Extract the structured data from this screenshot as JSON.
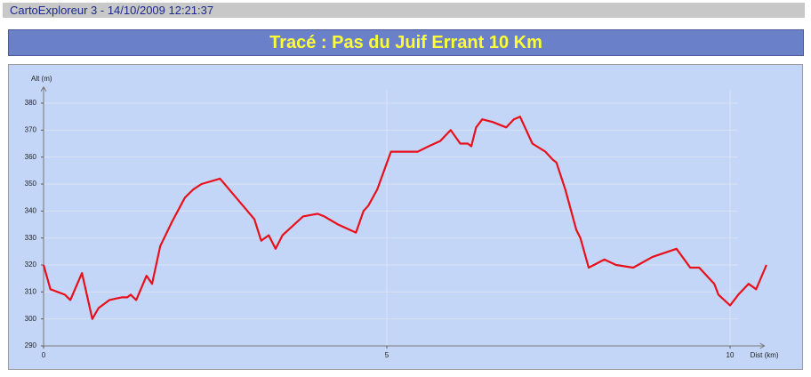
{
  "header": {
    "app": "CartoExploreur 3 - 14/10/2009 12:21:37"
  },
  "chart_data": {
    "type": "line",
    "title": "Tracé : Pas du Juif Errant 10 Km",
    "x_label": "Dist (km)",
    "y_label": "Alt (m)",
    "x": [
      0,
      0.1,
      0.31,
      0.39,
      0.56,
      0.71,
      0.8,
      0.96,
      1.14,
      1.22,
      1.27,
      1.35,
      1.5,
      1.58,
      1.7,
      1.87,
      2.06,
      2.18,
      2.3,
      2.57,
      3.07,
      3.17,
      3.28,
      3.38,
      3.48,
      3.78,
      3.99,
      4.09,
      4.29,
      4.55,
      4.66,
      4.73,
      4.86,
      5.06,
      5.45,
      5.61,
      5.78,
      5.93,
      6.07,
      6.18,
      6.23,
      6.3,
      6.39,
      6.54,
      6.74,
      6.85,
      6.94,
      7.12,
      7.31,
      7.42,
      7.47,
      7.6,
      7.76,
      7.82,
      7.94,
      8.17,
      8.34,
      8.59,
      8.87,
      9.22,
      9.42,
      9.55,
      9.77,
      9.83,
      10.0,
      10.12,
      10.27,
      10.38,
      10.53
    ],
    "series": [
      {
        "name": "Altitude",
        "color": "#e8101a",
        "values": [
          320,
          311,
          309,
          307,
          317,
          300,
          304,
          307,
          308,
          308,
          309,
          307,
          316,
          313,
          327,
          336,
          345,
          348,
          350,
          352,
          337,
          329,
          331,
          326,
          331,
          338,
          339,
          338,
          335,
          332,
          340,
          342,
          348,
          362,
          362,
          364,
          366,
          370,
          365,
          365,
          364,
          371,
          374,
          373,
          371,
          374,
          375,
          365,
          362,
          359,
          358,
          348,
          333,
          330,
          319,
          322,
          320,
          319,
          323,
          326,
          319,
          319,
          313,
          309,
          305,
          309,
          313,
          311,
          320
        ]
      }
    ],
    "xlim": [
      0,
      10.5
    ],
    "xticks": [
      0,
      5,
      10
    ],
    "ylim": [
      290,
      386
    ],
    "yticks": [
      290,
      300,
      310,
      320,
      330,
      340,
      350,
      360,
      370,
      380
    ],
    "grid": true
  }
}
